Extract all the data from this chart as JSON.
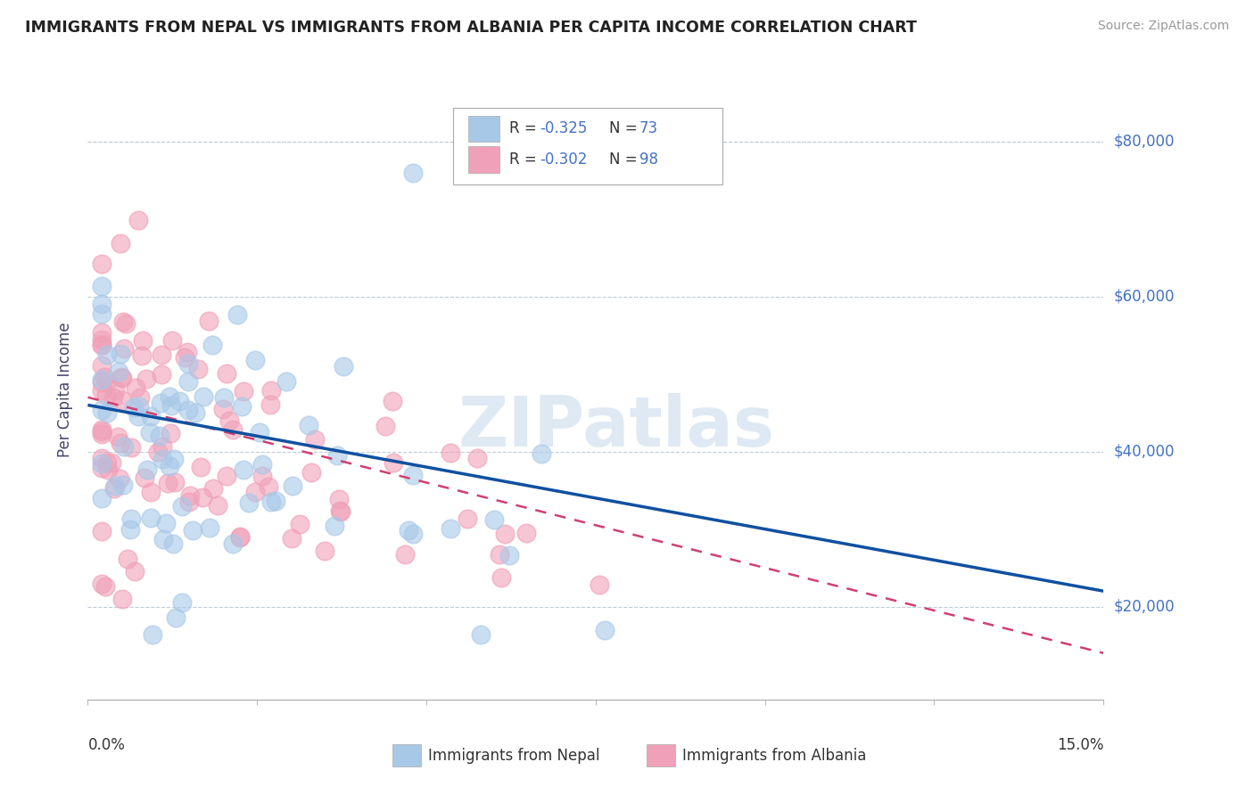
{
  "title": "IMMIGRANTS FROM NEPAL VS IMMIGRANTS FROM ALBANIA PER CAPITA INCOME CORRELATION CHART",
  "source": "Source: ZipAtlas.com",
  "ylabel": "Per Capita Income",
  "legend_nepal": {
    "R": -0.325,
    "N": 73,
    "color": "#a8c8e8",
    "line_color": "#1050a0"
  },
  "legend_albania": {
    "R": -0.302,
    "N": 98,
    "color": "#f0a0b8",
    "line_color": "#d04070"
  },
  "yticks": [
    20000,
    40000,
    60000,
    80000
  ],
  "ytick_labels": [
    "$20,000",
    "$40,000",
    "$60,000",
    "$80,000"
  ],
  "xlim": [
    0.0,
    0.15
  ],
  "ylim": [
    8000,
    88000
  ],
  "watermark": "ZIPatlas"
}
